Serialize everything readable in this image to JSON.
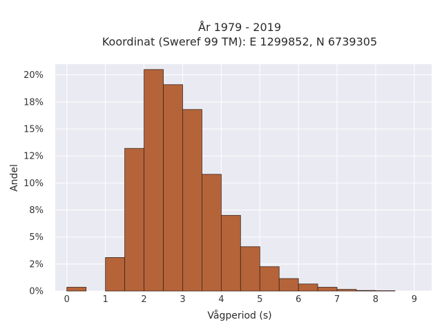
{
  "chart_data": {
    "type": "bar",
    "title_lines": [
      "År 1979 - 2019",
      "Koordinat (Sweref 99 TM): E 1299852, N 6739305"
    ],
    "xlabel": "Vågperiod (s)",
    "ylabel": "Andel",
    "x_ticks": [
      "0",
      "1",
      "2",
      "3",
      "4",
      "5",
      "6",
      "7",
      "8",
      "9"
    ],
    "y_ticks": [
      "0%",
      "2%",
      "5%",
      "8%",
      "10%",
      "12%",
      "15%",
      "18%",
      "20%"
    ],
    "y_tick_values": [
      0,
      2.5,
      5,
      7.5,
      10,
      12.5,
      15,
      17.5,
      20
    ],
    "xlim": [
      -0.3,
      9.45
    ],
    "ylim": [
      0,
      21
    ],
    "bin_width": 0.5,
    "bins": [
      {
        "x0": 0.0,
        "value": 0.35
      },
      {
        "x0": 1.0,
        "value": 3.1
      },
      {
        "x0": 1.5,
        "value": 13.2
      },
      {
        "x0": 2.0,
        "value": 20.5
      },
      {
        "x0": 2.5,
        "value": 19.1
      },
      {
        "x0": 3.0,
        "value": 16.8
      },
      {
        "x0": 3.5,
        "value": 10.8
      },
      {
        "x0": 4.0,
        "value": 7.0
      },
      {
        "x0": 4.5,
        "value": 4.1
      },
      {
        "x0": 5.0,
        "value": 2.25
      },
      {
        "x0": 5.5,
        "value": 1.15
      },
      {
        "x0": 6.0,
        "value": 0.65
      },
      {
        "x0": 6.5,
        "value": 0.35
      },
      {
        "x0": 7.0,
        "value": 0.15
      },
      {
        "x0": 7.5,
        "value": 0.05
      },
      {
        "x0": 8.0,
        "value": 0.03
      }
    ],
    "grid": true,
    "colors": {
      "bar_fill": "#b5643a",
      "bar_stroke": "#3b2418",
      "plot_bg": "#eaeaf2",
      "grid": "#ffffff"
    }
  }
}
